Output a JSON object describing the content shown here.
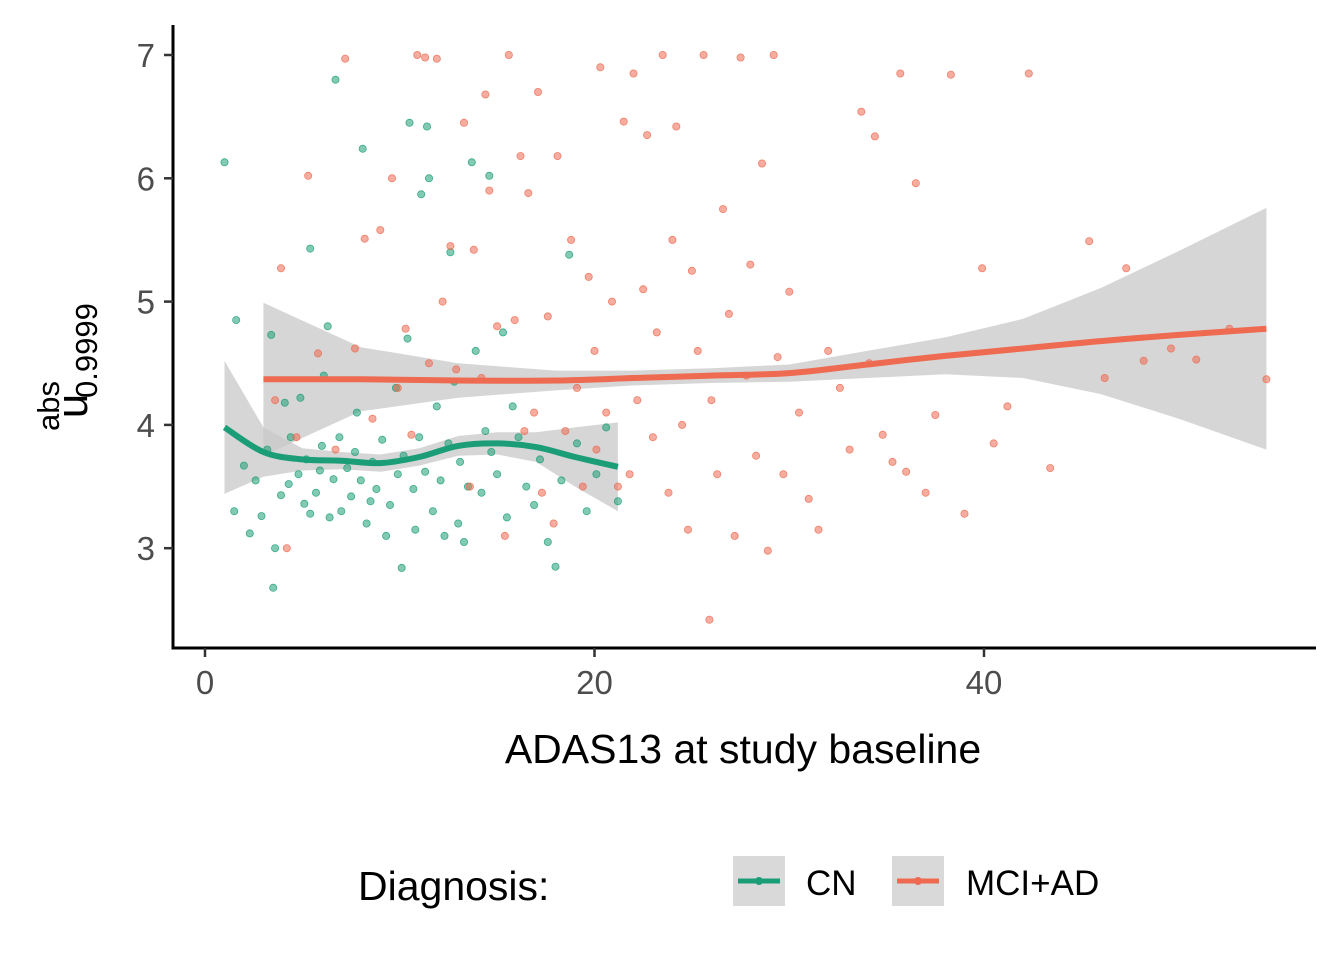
{
  "chart_data": {
    "type": "scatter",
    "title": "",
    "xlabel": "ADAS13 at study baseline",
    "ylabel": {
      "main": "u",
      "superscript": "abs",
      "subscript": "0.9999"
    },
    "xlim": [
      -4,
      56
    ],
    "ylim": [
      2.2,
      7.25
    ],
    "x_ticks": [
      0,
      20,
      40
    ],
    "y_ticks": [
      3,
      4,
      5,
      6,
      7
    ],
    "grid": false,
    "legend": {
      "title": "Diagnosis:",
      "position": "bottom"
    },
    "colors": {
      "CN": "#1b9e77",
      "MCI+AD": "#ee6a50",
      "ribbon": "#c8c8c8"
    },
    "series": [
      {
        "name": "CN",
        "color": "#1b9e77",
        "smooth": {
          "x": [
            1,
            3,
            5,
            7,
            9,
            11,
            13,
            15,
            17,
            19,
            21.2
          ],
          "y": [
            3.98,
            3.78,
            3.72,
            3.71,
            3.69,
            3.74,
            3.83,
            3.85,
            3.82,
            3.74,
            3.66
          ],
          "lower": [
            3.44,
            3.58,
            3.63,
            3.64,
            3.62,
            3.67,
            3.75,
            3.76,
            3.7,
            3.5,
            3.3
          ],
          "upper": [
            4.52,
            3.98,
            3.81,
            3.78,
            3.76,
            3.81,
            3.91,
            3.94,
            3.94,
            3.98,
            4.02
          ]
        },
        "points": [
          [
            1.0,
            6.13
          ],
          [
            1.5,
            3.3
          ],
          [
            1.6,
            4.85
          ],
          [
            2.0,
            3.67
          ],
          [
            2.3,
            3.12
          ],
          [
            2.6,
            3.55
          ],
          [
            2.9,
            3.26
          ],
          [
            3.2,
            3.8
          ],
          [
            3.4,
            4.73
          ],
          [
            3.6,
            3.0
          ],
          [
            3.5,
            2.68
          ],
          [
            3.9,
            3.43
          ],
          [
            4.1,
            4.18
          ],
          [
            4.3,
            3.52
          ],
          [
            4.4,
            3.9
          ],
          [
            4.8,
            3.6
          ],
          [
            4.9,
            4.22
          ],
          [
            5.1,
            3.36
          ],
          [
            5.2,
            3.72
          ],
          [
            5.4,
            3.28
          ],
          [
            5.4,
            5.43
          ],
          [
            5.7,
            3.45
          ],
          [
            5.9,
            3.63
          ],
          [
            6.0,
            3.83
          ],
          [
            6.1,
            4.4
          ],
          [
            6.3,
            4.8
          ],
          [
            6.4,
            3.25
          ],
          [
            6.6,
            3.56
          ],
          [
            6.7,
            6.8
          ],
          [
            6.9,
            3.9
          ],
          [
            7.0,
            3.3
          ],
          [
            7.3,
            3.65
          ],
          [
            7.5,
            3.42
          ],
          [
            7.7,
            3.78
          ],
          [
            7.8,
            4.1
          ],
          [
            8.0,
            3.55
          ],
          [
            8.1,
            6.24
          ],
          [
            8.3,
            3.2
          ],
          [
            8.5,
            3.38
          ],
          [
            8.6,
            3.7
          ],
          [
            8.8,
            3.48
          ],
          [
            9.1,
            3.88
          ],
          [
            9.3,
            3.1
          ],
          [
            9.5,
            3.35
          ],
          [
            9.8,
            4.3
          ],
          [
            9.9,
            3.6
          ],
          [
            10.1,
            2.84
          ],
          [
            10.2,
            3.75
          ],
          [
            10.4,
            4.7
          ],
          [
            10.5,
            6.45
          ],
          [
            10.7,
            3.48
          ],
          [
            10.8,
            3.15
          ],
          [
            11.0,
            3.9
          ],
          [
            11.1,
            5.87
          ],
          [
            11.3,
            3.62
          ],
          [
            11.4,
            6.42
          ],
          [
            11.5,
            6.0
          ],
          [
            11.7,
            3.3
          ],
          [
            11.9,
            4.15
          ],
          [
            12.1,
            3.55
          ],
          [
            12.3,
            3.1
          ],
          [
            12.5,
            3.85
          ],
          [
            12.6,
            5.4
          ],
          [
            12.8,
            4.35
          ],
          [
            13.0,
            3.2
          ],
          [
            13.1,
            3.7
          ],
          [
            13.3,
            3.05
          ],
          [
            13.5,
            3.5
          ],
          [
            13.7,
            6.13
          ],
          [
            13.9,
            4.6
          ],
          [
            14.2,
            3.45
          ],
          [
            14.4,
            3.95
          ],
          [
            14.6,
            6.02
          ],
          [
            14.7,
            3.78
          ],
          [
            15.0,
            3.6
          ],
          [
            15.3,
            4.75
          ],
          [
            15.5,
            3.25
          ],
          [
            15.8,
            4.15
          ],
          [
            16.1,
            3.9
          ],
          [
            16.5,
            3.5
          ],
          [
            16.9,
            3.35
          ],
          [
            17.2,
            3.72
          ],
          [
            17.6,
            3.05
          ],
          [
            18.0,
            2.85
          ],
          [
            18.3,
            3.55
          ],
          [
            18.7,
            5.38
          ],
          [
            19.1,
            3.85
          ],
          [
            19.6,
            3.3
          ],
          [
            20.1,
            3.6
          ],
          [
            20.6,
            3.98
          ],
          [
            21.2,
            3.38
          ]
        ]
      },
      {
        "name": "MCI+AD",
        "color": "#ee6a50",
        "smooth": {
          "x": [
            3,
            8,
            13,
            18,
            22,
            26,
            30,
            34,
            38,
            42,
            46,
            50,
            54.5
          ],
          "y": [
            4.37,
            4.37,
            4.36,
            4.36,
            4.38,
            4.4,
            4.42,
            4.49,
            4.56,
            4.62,
            4.68,
            4.73,
            4.78
          ],
          "lower": [
            3.75,
            4.11,
            4.22,
            4.28,
            4.32,
            4.34,
            4.35,
            4.38,
            4.41,
            4.38,
            4.25,
            4.05,
            3.8
          ],
          "upper": [
            4.99,
            4.63,
            4.5,
            4.44,
            4.44,
            4.46,
            4.49,
            4.6,
            4.71,
            4.86,
            5.11,
            5.41,
            5.76
          ]
        },
        "points": [
          [
            3.6,
            4.2
          ],
          [
            3.9,
            5.27
          ],
          [
            4.2,
            3.0
          ],
          [
            4.7,
            3.9
          ],
          [
            5.3,
            6.02
          ],
          [
            5.8,
            4.58
          ],
          [
            6.7,
            3.8
          ],
          [
            7.2,
            6.97
          ],
          [
            7.7,
            4.62
          ],
          [
            8.2,
            5.51
          ],
          [
            8.6,
            4.05
          ],
          [
            9.0,
            5.58
          ],
          [
            9.6,
            6.0
          ],
          [
            9.9,
            4.3
          ],
          [
            10.3,
            4.78
          ],
          [
            10.6,
            3.92
          ],
          [
            10.9,
            7.0
          ],
          [
            11.3,
            6.98
          ],
          [
            11.5,
            4.5
          ],
          [
            11.9,
            6.97
          ],
          [
            12.2,
            5.0
          ],
          [
            12.6,
            5.45
          ],
          [
            12.9,
            4.45
          ],
          [
            13.3,
            6.45
          ],
          [
            13.6,
            3.5
          ],
          [
            13.8,
            5.42
          ],
          [
            14.2,
            4.38
          ],
          [
            14.4,
            6.68
          ],
          [
            14.6,
            5.9
          ],
          [
            15.0,
            4.8
          ],
          [
            15.4,
            3.1
          ],
          [
            15.6,
            7.0
          ],
          [
            15.9,
            4.85
          ],
          [
            16.2,
            6.18
          ],
          [
            16.4,
            3.95
          ],
          [
            16.6,
            5.88
          ],
          [
            16.9,
            4.1
          ],
          [
            17.1,
            6.7
          ],
          [
            17.3,
            3.45
          ],
          [
            17.6,
            4.88
          ],
          [
            17.9,
            3.2
          ],
          [
            18.1,
            6.18
          ],
          [
            18.5,
            3.95
          ],
          [
            18.8,
            5.5
          ],
          [
            19.1,
            4.3
          ],
          [
            19.4,
            3.5
          ],
          [
            19.7,
            5.2
          ],
          [
            20.0,
            4.6
          ],
          [
            20.1,
            3.8
          ],
          [
            20.3,
            6.9
          ],
          [
            20.6,
            4.1
          ],
          [
            20.9,
            5.0
          ],
          [
            21.2,
            3.5
          ],
          [
            21.5,
            6.46
          ],
          [
            21.8,
            3.6
          ],
          [
            22.0,
            6.85
          ],
          [
            22.2,
            4.2
          ],
          [
            22.5,
            5.1
          ],
          [
            22.7,
            6.35
          ],
          [
            23.0,
            3.9
          ],
          [
            23.2,
            4.75
          ],
          [
            23.5,
            7.0
          ],
          [
            23.8,
            3.45
          ],
          [
            24.0,
            5.5
          ],
          [
            24.2,
            6.42
          ],
          [
            24.5,
            4.0
          ],
          [
            24.8,
            3.15
          ],
          [
            25.0,
            5.25
          ],
          [
            25.3,
            4.6
          ],
          [
            25.6,
            7.0
          ],
          [
            25.9,
            2.42
          ],
          [
            26.0,
            4.2
          ],
          [
            26.3,
            3.6
          ],
          [
            26.6,
            5.75
          ],
          [
            26.9,
            4.9
          ],
          [
            27.2,
            3.1
          ],
          [
            27.5,
            6.98
          ],
          [
            27.8,
            4.4
          ],
          [
            28.0,
            5.3
          ],
          [
            28.3,
            3.75
          ],
          [
            28.6,
            6.12
          ],
          [
            28.9,
            2.98
          ],
          [
            29.2,
            7.0
          ],
          [
            29.4,
            4.55
          ],
          [
            29.7,
            3.6
          ],
          [
            30.0,
            5.08
          ],
          [
            30.5,
            4.1
          ],
          [
            31.0,
            3.4
          ],
          [
            31.5,
            3.15
          ],
          [
            32.0,
            4.6
          ],
          [
            32.6,
            4.3
          ],
          [
            33.1,
            3.8
          ],
          [
            33.7,
            6.54
          ],
          [
            34.1,
            4.5
          ],
          [
            34.4,
            6.34
          ],
          [
            34.8,
            3.92
          ],
          [
            35.3,
            3.7
          ],
          [
            35.7,
            6.85
          ],
          [
            36.0,
            3.62
          ],
          [
            36.5,
            5.96
          ],
          [
            37.0,
            3.45
          ],
          [
            37.5,
            4.08
          ],
          [
            38.3,
            6.84
          ],
          [
            39.0,
            3.28
          ],
          [
            39.9,
            5.27
          ],
          [
            40.5,
            3.85
          ],
          [
            41.2,
            4.15
          ],
          [
            42.3,
            6.85
          ],
          [
            43.4,
            3.65
          ],
          [
            45.4,
            5.49
          ],
          [
            46.2,
            4.38
          ],
          [
            47.3,
            5.27
          ],
          [
            48.2,
            4.52
          ],
          [
            49.6,
            4.62
          ],
          [
            50.9,
            4.53
          ],
          [
            52.6,
            4.78
          ],
          [
            54.5,
            4.37
          ]
        ]
      }
    ]
  }
}
